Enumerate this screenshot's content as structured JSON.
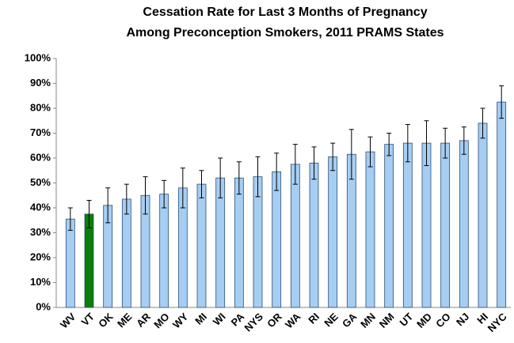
{
  "chart_data": {
    "type": "bar",
    "title": [
      "Cessation Rate for Last 3 Months of Pregnancy",
      "Among Preconception Smokers, 2011 PRAMS States"
    ],
    "categories": [
      "WV",
      "VT",
      "OK",
      "ME",
      "AR",
      "MO",
      "WY",
      "MI",
      "WI",
      "PA",
      "NYS",
      "OR",
      "WA",
      "RI",
      "NE",
      "GA",
      "MN",
      "NM",
      "UT",
      "MD",
      "CO",
      "NJ",
      "HI",
      "NYC"
    ],
    "values": [
      35.5,
      37.5,
      41,
      43.5,
      45,
      45.5,
      48,
      49.5,
      52,
      52,
      52.5,
      54.5,
      57.5,
      58,
      60.5,
      61.5,
      62.5,
      65.5,
      66,
      66,
      66,
      67,
      74,
      82.5
    ],
    "errors": [
      4.5,
      5.5,
      7,
      6,
      7.5,
      5.5,
      8,
      5.5,
      8,
      6.5,
      8,
      7.5,
      8,
      6.5,
      5.5,
      10,
      6,
      4.5,
      7.5,
      9,
      6,
      5.5,
      6,
      6.5
    ],
    "colors": [
      "#a6cdf2",
      "#0a7d0a",
      "#a6cdf2",
      "#a6cdf2",
      "#a6cdf2",
      "#a6cdf2",
      "#a6cdf2",
      "#a6cdf2",
      "#a6cdf2",
      "#a6cdf2",
      "#a6cdf2",
      "#a6cdf2",
      "#a6cdf2",
      "#a6cdf2",
      "#a6cdf2",
      "#a6cdf2",
      "#a6cdf2",
      "#a6cdf2",
      "#a6cdf2",
      "#a6cdf2",
      "#a6cdf2",
      "#a6cdf2",
      "#a6cdf2",
      "#a6cdf2"
    ],
    "ylim": [
      0,
      100
    ],
    "yticks": [
      {
        "value": 0,
        "label": "0%"
      },
      {
        "value": 10,
        "label": "10%"
      },
      {
        "value": 20,
        "label": "20%"
      },
      {
        "value": 30,
        "label": "30%"
      },
      {
        "value": 40,
        "label": "40%"
      },
      {
        "value": 50,
        "label": "50%"
      },
      {
        "value": 60,
        "label": "60%"
      },
      {
        "value": 70,
        "label": "70%"
      },
      {
        "value": 80,
        "label": "80%"
      },
      {
        "value": 90,
        "label": "90%"
      },
      {
        "value": 100,
        "label": "100%"
      }
    ],
    "grid": false
  }
}
